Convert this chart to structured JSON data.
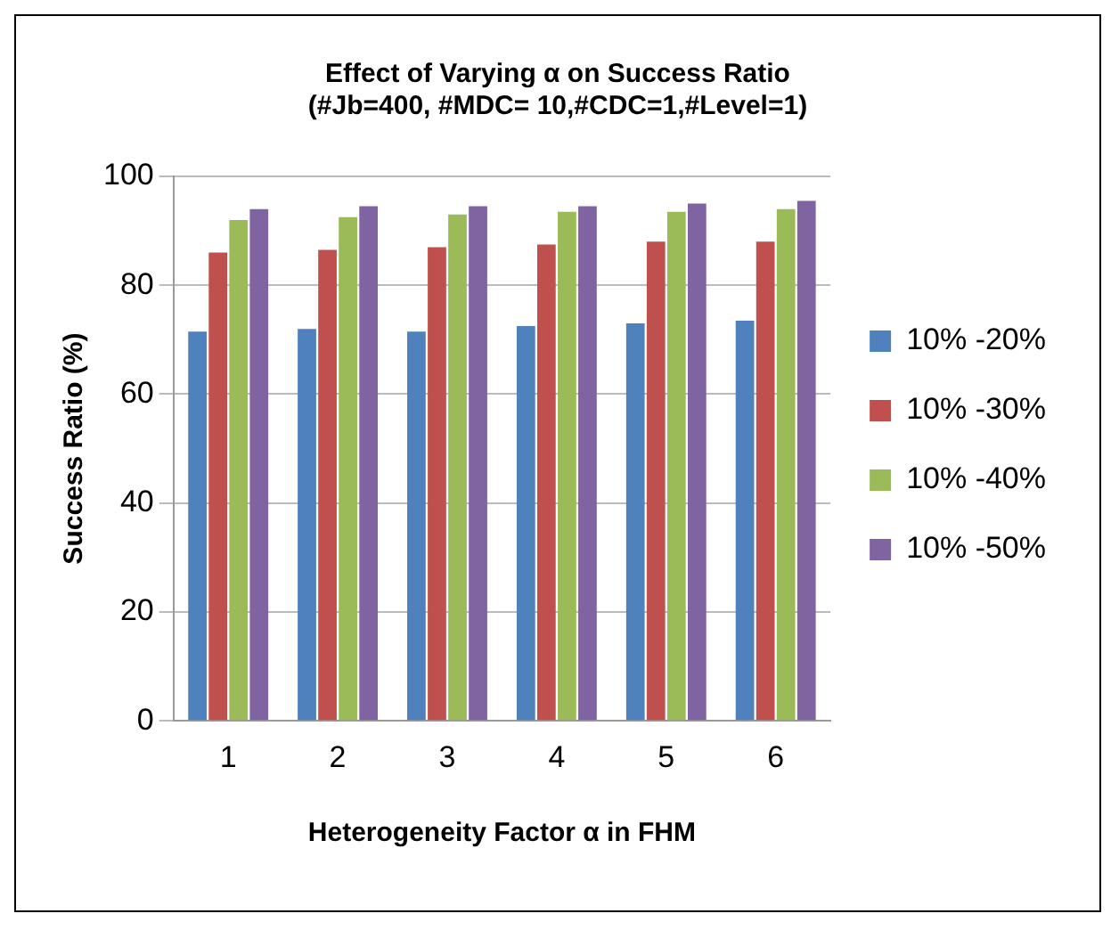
{
  "chart_data": {
    "type": "bar",
    "title": [
      "Effect of Varying α on Success Ratio",
      "(#Jb=400, #MDC= 10,#CDC=1,#Level=1)"
    ],
    "xlabel": "Heterogeneity Factor α in FHM",
    "ylabel": "Success Ratio (%)",
    "categories": [
      "1",
      "2",
      "3",
      "4",
      "5",
      "6"
    ],
    "series": [
      {
        "name": "10% -20%",
        "color": "#4f81bd",
        "values": [
          71.5,
          72,
          71.5,
          72.5,
          73,
          73.5
        ]
      },
      {
        "name": "10% -30%",
        "color": "#c0504d",
        "values": [
          86,
          86.5,
          87,
          87.5,
          88,
          88
        ]
      },
      {
        "name": "10% -40%",
        "color": "#9bbb59",
        "values": [
          92,
          92.5,
          93,
          93.5,
          93.5,
          94
        ]
      },
      {
        "name": "10% -50%",
        "color": "#8064a2",
        "values": [
          94,
          94.5,
          94.5,
          94.5,
          95,
          95.5
        ]
      }
    ],
    "ylim": [
      0,
      100
    ],
    "yticks": [
      0,
      20,
      40,
      60,
      80,
      100
    ],
    "grid": "y",
    "legend": "right"
  }
}
